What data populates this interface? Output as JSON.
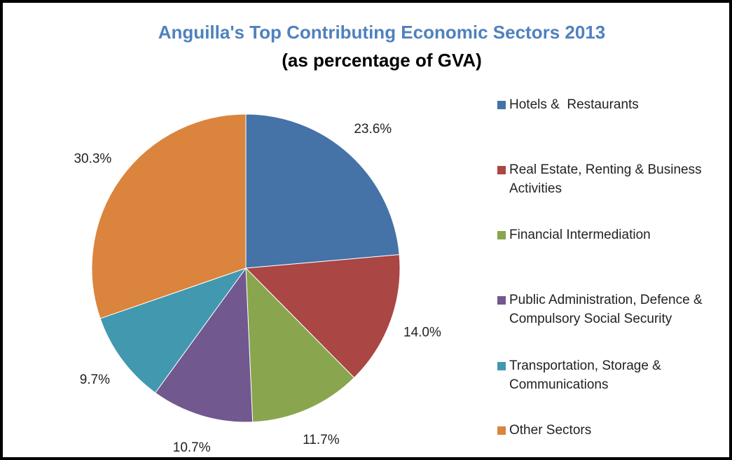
{
  "chart_data": {
    "type": "pie",
    "title": "Anguilla's Top Contributing Economic Sectors 2013",
    "subtitle": "(as percentage of GVA)",
    "categories": [
      "Hotels &  Restaurants",
      "Real Estate, Renting & Business Activities",
      "Financial Intermediation",
      "Public Administration, Defence & Compulsory Social Security",
      "Transportation, Storage & Communications",
      "Other Sectors"
    ],
    "values": [
      23.6,
      14.0,
      11.7,
      10.7,
      9.7,
      30.3
    ],
    "value_labels": [
      "23.6%",
      "14.0%",
      "11.7%",
      "10.7%",
      "9.7%",
      "30.3%"
    ],
    "colors": [
      "#4572a7",
      "#aa4643",
      "#89a54e",
      "#71588f",
      "#4198af",
      "#db843d"
    ],
    "legend": "right"
  }
}
